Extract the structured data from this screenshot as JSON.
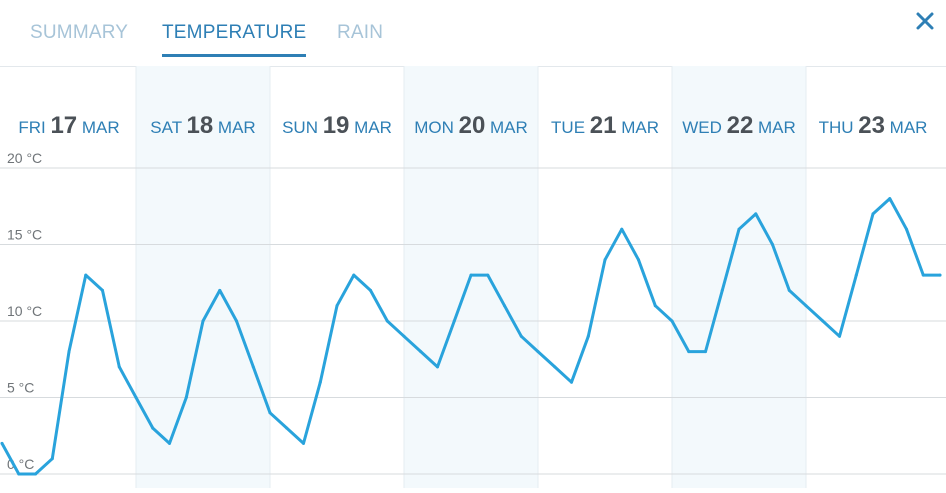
{
  "tabs": [
    {
      "label": "SUMMARY",
      "active": false
    },
    {
      "label": "TEMPERATURE",
      "active": true
    },
    {
      "label": "RAIN",
      "active": false
    }
  ],
  "close_icon": "close-icon",
  "colors": {
    "accent": "#2e7fb5",
    "line": "#29a3dc",
    "tab_inactive": "#a7c4d8",
    "band": "#f3f9fc"
  },
  "chart_data": {
    "type": "line",
    "days": [
      {
        "dow": "FRI",
        "day": "17",
        "mon": "MAR"
      },
      {
        "dow": "SAT",
        "day": "18",
        "mon": "MAR"
      },
      {
        "dow": "SUN",
        "day": "19",
        "mon": "MAR"
      },
      {
        "dow": "MON",
        "day": "20",
        "mon": "MAR"
      },
      {
        "dow": "TUE",
        "day": "21",
        "mon": "MAR"
      },
      {
        "dow": "WED",
        "day": "22",
        "mon": "MAR"
      },
      {
        "dow": "THU",
        "day": "23",
        "mon": "MAR"
      }
    ],
    "y_ticks": [
      "0 °C",
      "5 °C",
      "10 °C",
      "15 °C",
      "20 °C"
    ],
    "ylim": [
      0,
      20
    ],
    "xlim": [
      0,
      7
    ],
    "grid": true,
    "series": [
      {
        "x": [
          0,
          0.125,
          0.25,
          0.375,
          0.5,
          0.625,
          0.75,
          0.875,
          1,
          1.125,
          1.25,
          1.375,
          1.5,
          1.625,
          1.75,
          1.875,
          2,
          2.125,
          2.25,
          2.375,
          2.5,
          2.625,
          2.75,
          2.875,
          3,
          3.125,
          3.25,
          3.375,
          3.5,
          3.625,
          3.75,
          3.875,
          4,
          4.125,
          4.25,
          4.375,
          4.5,
          4.625,
          4.75,
          4.875,
          5,
          5.125,
          5.25,
          5.375,
          5.5,
          5.625,
          5.75,
          5.875,
          6,
          6.125,
          6.25,
          6.375,
          6.5,
          6.625,
          6.75,
          6.875,
          7
        ],
        "y": [
          2,
          0,
          0,
          1,
          8,
          13,
          12,
          7,
          5,
          3,
          2,
          5,
          10,
          12,
          10,
          7,
          4,
          3,
          2,
          6,
          11,
          13,
          12,
          10,
          9,
          8,
          7,
          10,
          13,
          13,
          11,
          9,
          8,
          7,
          6,
          9,
          14,
          16,
          14,
          11,
          10,
          8,
          8,
          12,
          16,
          17,
          15,
          12,
          11,
          10,
          9,
          13,
          17,
          18,
          16,
          13,
          13
        ]
      }
    ]
  }
}
